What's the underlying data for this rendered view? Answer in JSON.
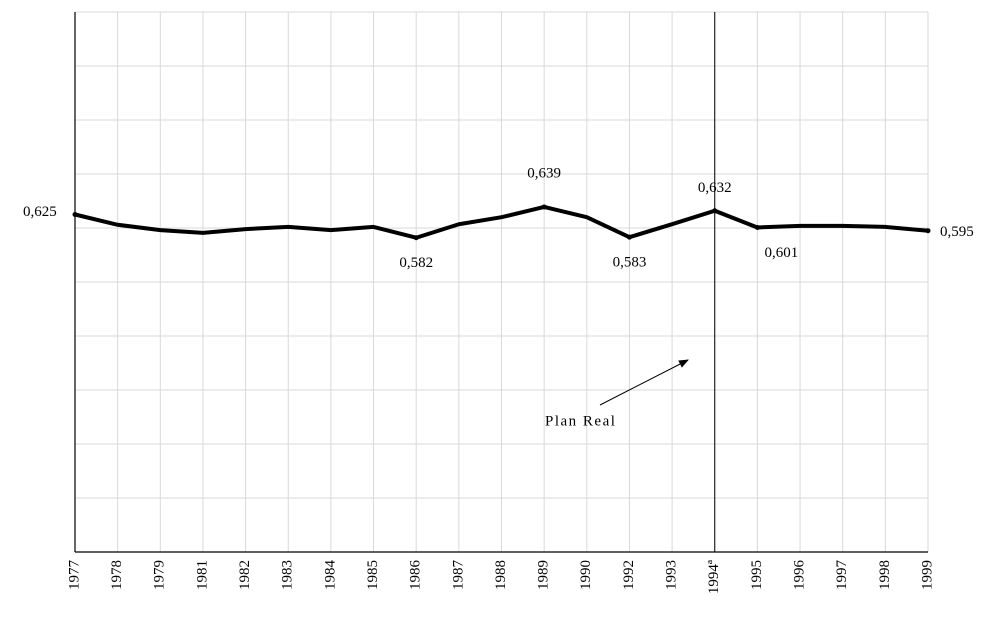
{
  "chart_data": {
    "type": "line",
    "categories": [
      "1977",
      "1978",
      "1979",
      "1981",
      "1982",
      "1983",
      "1984",
      "1985",
      "1986",
      "1987",
      "1988",
      "1989",
      "1990",
      "1992",
      "1993",
      "1994ª",
      "1995",
      "1996",
      "1997",
      "1998",
      "1999"
    ],
    "series": [
      {
        "color": "#000000",
        "values": [
          0.625,
          0.606,
          0.596,
          0.591,
          0.598,
          0.602,
          0.596,
          0.602,
          0.582,
          0.607,
          0.62,
          0.639,
          0.62,
          0.583,
          0.607,
          0.632,
          0.601,
          0.604,
          0.604,
          0.602,
          0.595
        ],
        "value_labels": [
          "0,625",
          null,
          null,
          null,
          null,
          null,
          null,
          null,
          "0,582",
          null,
          null,
          "0,639",
          null,
          "0,583",
          null,
          "0,632",
          "0,601",
          null,
          null,
          null,
          "0,595"
        ]
      }
    ],
    "ylim": [
      0,
      1
    ],
    "yticks": [
      0,
      0.1,
      0.2,
      0.3,
      0.4,
      0.5,
      0.6,
      0.7,
      0.8,
      0.9,
      1
    ],
    "show_ytick_labels": false,
    "grid": true,
    "reference_line_at": "1994ª",
    "annotations": [
      {
        "text": "Plan Real"
      }
    ]
  }
}
